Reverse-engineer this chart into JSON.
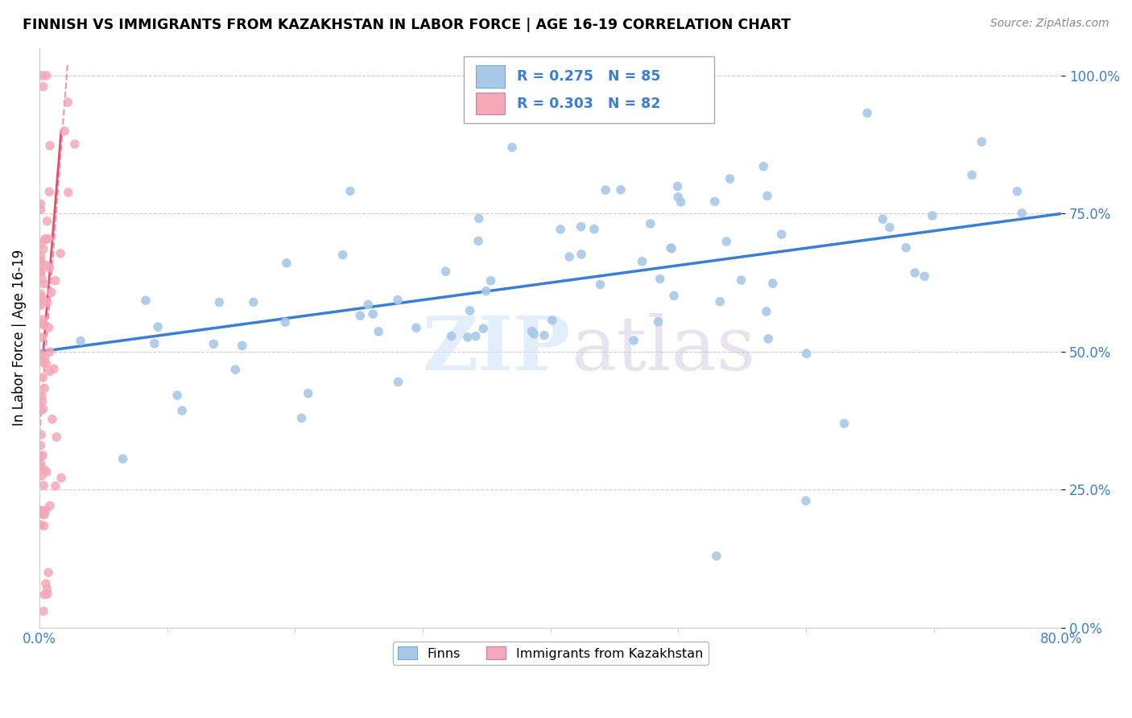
{
  "title": "FINNISH VS IMMIGRANTS FROM KAZAKHSTAN IN LABOR FORCE | AGE 16-19 CORRELATION CHART",
  "source": "Source: ZipAtlas.com",
  "ylabel": "In Labor Force | Age 16-19",
  "xlim": [
    0.0,
    0.8
  ],
  "ylim": [
    0.0,
    1.05
  ],
  "ytick_labels": [
    "0.0%",
    "25.0%",
    "50.0%",
    "75.0%",
    "100.0%"
  ],
  "ytick_values": [
    0.0,
    0.25,
    0.5,
    0.75,
    1.0
  ],
  "xtick_labels": [
    "0.0%",
    "80.0%"
  ],
  "xtick_values": [
    0.0,
    0.8
  ],
  "finns_color": "#a8c8e8",
  "immigrants_color": "#f4a8b8",
  "trend_finn_color": "#3a7fd5",
  "trend_imm_color": "#e05070",
  "trend_imm_dash": true,
  "legend_box_color_finn": "#a8c8e8",
  "legend_box_color_imm": "#f4a8b8",
  "R_finn": 0.275,
  "N_finn": 85,
  "R_imm": 0.303,
  "N_imm": 82,
  "finn_trend_y0": 0.5,
  "finn_trend_y1": 0.75,
  "imm_trend_x0": 0.001,
  "imm_trend_x1": 0.022,
  "imm_trend_y0": 0.5,
  "imm_trend_y1": 1.0
}
